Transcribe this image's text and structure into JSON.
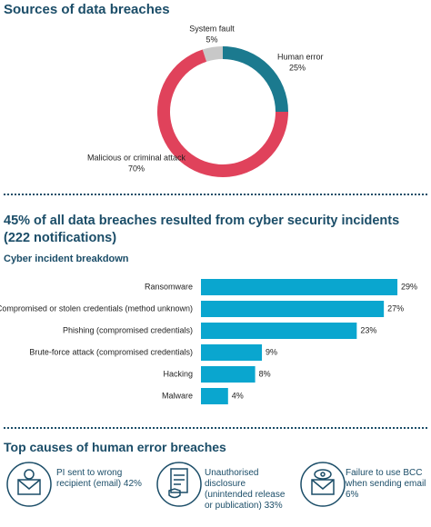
{
  "chart_data": [
    {
      "type": "pie",
      "title": "Sources of data breaches",
      "categories": [
        "System fault",
        "Human error",
        "Malicious or criminal attack"
      ],
      "values": [
        5,
        25,
        70
      ],
      "value_labels": [
        "5%",
        "25%",
        "70%"
      ],
      "colors": [
        "#c8c8c8",
        "#1b7a8f",
        "#e0425b"
      ]
    },
    {
      "type": "bar",
      "title": "45% of all data breaches resulted from cyber security incidents (222 notifications)",
      "subtitle": "Cyber incident breakdown",
      "categories": [
        "Ransomware",
        "Compromised or stolen credentials (method unknown)",
        "Phishing (compromised credentials)",
        "Brute-force attack (compromised credentials)",
        "Hacking",
        "Malware"
      ],
      "values": [
        29,
        27,
        23,
        9,
        8,
        4
      ],
      "value_labels": [
        "29%",
        "27%",
        "23%",
        "9%",
        "8%",
        "4%"
      ],
      "color": "#0aa6cf"
    }
  ],
  "human_error": {
    "title": "Top causes of human error breaches",
    "items": [
      "PI sent to wrong recipient (email) 42%",
      "Unauthorised disclosure (unintended release or publication) 33%",
      "Failure to use BCC when sending email 6%"
    ]
  }
}
